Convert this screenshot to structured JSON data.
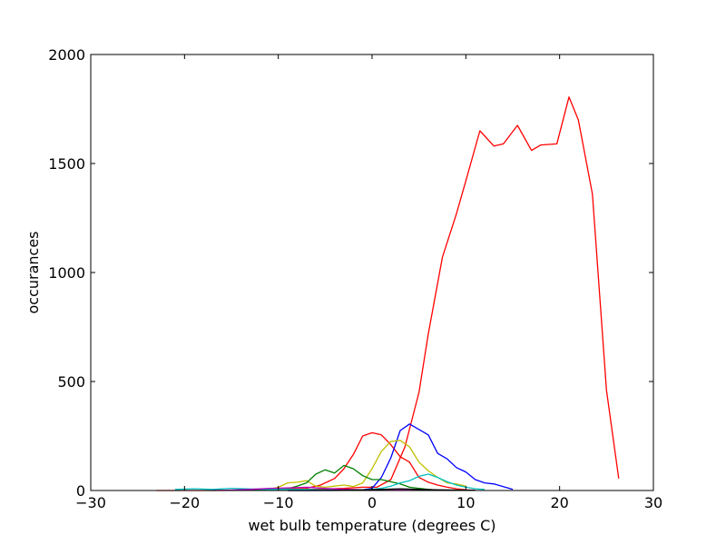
{
  "chart_data": {
    "type": "line",
    "title": "",
    "xlabel": "wet bulb temperature (degrees C)",
    "ylabel": "occurances",
    "xlim": [
      -30,
      30
    ],
    "ylim": [
      0,
      2000
    ],
    "xticks": [
      -30,
      -20,
      -10,
      0,
      10,
      20,
      30
    ],
    "xtick_labels": [
      "−30",
      "−20",
      "−10",
      "0",
      "10",
      "20",
      "30"
    ],
    "yticks": [
      0,
      500,
      1000,
      1500,
      2000
    ],
    "ytick_labels": [
      "0",
      "500",
      "1000",
      "1500",
      "2000"
    ],
    "grid": false,
    "series": [
      {
        "color": "#ff0000",
        "x": [
          -23,
          -21,
          -19,
          -17,
          -15,
          -13,
          -11,
          -9,
          -7,
          -5,
          -3,
          -1,
          0.5,
          2,
          3.5,
          5,
          6,
          7.5,
          9,
          10,
          11.5,
          13,
          14,
          15.5,
          17,
          18,
          19.7,
          21,
          22,
          23.5,
          25,
          26.3
        ],
        "y": [
          0,
          0,
          0,
          0,
          1,
          2,
          3,
          4,
          5,
          7,
          10,
          15,
          15,
          50,
          200,
          450,
          720,
          1070,
          1270,
          1420,
          1650,
          1580,
          1590,
          1675,
          1560,
          1585,
          1590,
          1805,
          1700,
          1360,
          460,
          55
        ]
      },
      {
        "color": "#ff0000",
        "x": [
          -13,
          -11,
          -9,
          -7,
          -5.5,
          -4,
          -3,
          -2,
          -1,
          0,
          1,
          2,
          3,
          4,
          5,
          6,
          7,
          8,
          9,
          10,
          11
        ],
        "y": [
          2,
          4,
          7,
          10,
          25,
          55,
          100,
          165,
          250,
          265,
          255,
          210,
          155,
          130,
          60,
          38,
          25,
          15,
          8,
          3,
          1
        ]
      },
      {
        "color": "#0000ff",
        "x": [
          -9,
          -7,
          -5,
          -3,
          -1,
          0,
          1,
          2,
          3,
          4,
          5,
          6,
          7,
          8,
          9,
          10,
          11,
          12,
          13,
          15
        ],
        "y": [
          0,
          0,
          0,
          1,
          3,
          10,
          60,
          150,
          275,
          305,
          280,
          255,
          170,
          145,
          105,
          85,
          50,
          35,
          30,
          5
        ]
      },
      {
        "color": "#bfbf00",
        "x": [
          -12,
          -11,
          -10,
          -9,
          -8,
          -7,
          -6,
          -5,
          -4,
          -3,
          -2,
          -1,
          0,
          1,
          2,
          3,
          4,
          5,
          6,
          7,
          8,
          9,
          10
        ],
        "y": [
          2,
          5,
          15,
          35,
          38,
          45,
          20,
          15,
          20,
          25,
          18,
          35,
          100,
          180,
          225,
          230,
          200,
          130,
          90,
          60,
          35,
          30,
          20
        ]
      },
      {
        "color": "#008000",
        "x": [
          -15,
          -13,
          -11,
          -9,
          -8,
          -7,
          -6,
          -5,
          -4,
          -3,
          -2,
          -1,
          0,
          1,
          2,
          3,
          4,
          5,
          6,
          7
        ],
        "y": [
          1,
          2,
          3,
          8,
          20,
          35,
          75,
          95,
          80,
          115,
          100,
          68,
          50,
          50,
          40,
          30,
          15,
          10,
          5,
          2
        ]
      },
      {
        "color": "#00bfbf",
        "x": [
          -21,
          -19,
          -17,
          -15,
          -13,
          -11,
          -9,
          -7,
          -5,
          -3,
          -1,
          1,
          2,
          3,
          4,
          5,
          6,
          7,
          8,
          9,
          10,
          11,
          12
        ],
        "y": [
          5,
          8,
          5,
          10,
          7,
          5,
          5,
          5,
          3,
          2,
          2,
          10,
          20,
          35,
          45,
          65,
          75,
          60,
          40,
          25,
          15,
          8,
          5
        ]
      },
      {
        "color": "#bf00bf",
        "x": [
          -17,
          -15,
          -13,
          -11,
          -9,
          -7,
          -5,
          -3,
          -1,
          1,
          3,
          5,
          7,
          9
        ],
        "y": [
          0,
          2,
          5,
          10,
          12,
          15,
          10,
          6,
          3,
          2,
          2,
          3,
          2,
          1
        ]
      },
      {
        "color": "#000000",
        "x": [
          -9,
          -7,
          -5,
          -3,
          -1,
          1,
          3,
          5,
          7,
          9,
          11
        ],
        "y": [
          0,
          0,
          1,
          2,
          3,
          5,
          8,
          5,
          3,
          2,
          1
        ]
      }
    ]
  }
}
